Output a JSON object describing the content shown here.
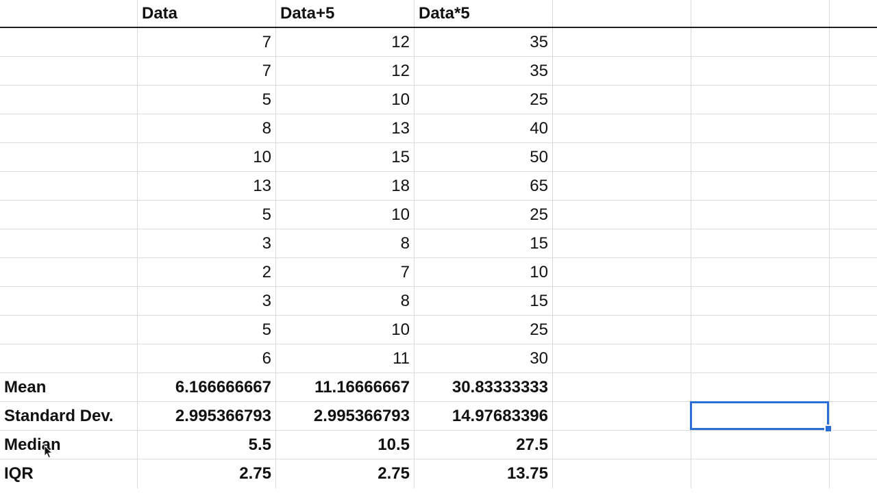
{
  "headers": [
    "",
    "Data",
    "Data+5",
    "Data*5",
    "",
    "",
    ""
  ],
  "rows": [
    [
      "",
      "7",
      "12",
      "35"
    ],
    [
      "",
      "7",
      "12",
      "35"
    ],
    [
      "",
      "5",
      "10",
      "25"
    ],
    [
      "",
      "8",
      "13",
      "40"
    ],
    [
      "",
      "10",
      "15",
      "50"
    ],
    [
      "",
      "13",
      "18",
      "65"
    ],
    [
      "",
      "5",
      "10",
      "25"
    ],
    [
      "",
      "3",
      "8",
      "15"
    ],
    [
      "",
      "2",
      "7",
      "10"
    ],
    [
      "",
      "3",
      "8",
      "15"
    ],
    [
      "",
      "5",
      "10",
      "25"
    ],
    [
      "",
      "6",
      "11",
      "30"
    ]
  ],
  "stats": [
    [
      "Mean",
      "6.166666667",
      "11.16666667",
      "30.83333333"
    ],
    [
      "Standard Dev.",
      "2.995366793",
      "2.995366793",
      "14.97683396"
    ],
    [
      "Median",
      "5.5",
      "10.5",
      "27.5"
    ],
    [
      "IQR",
      "2.75",
      "2.75",
      "13.75"
    ]
  ],
  "colors": {
    "selection": "#2a6fd8",
    "gridline": "#dadada",
    "header_rule": "#1f1f1f"
  },
  "icons": {
    "cursor": "mouse-pointer-icon"
  }
}
